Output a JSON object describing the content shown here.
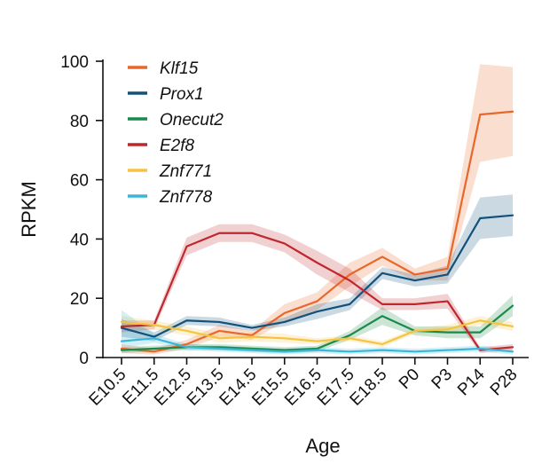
{
  "chart_data": {
    "type": "line",
    "title": "",
    "xlabel": "Age",
    "ylabel": "RPKM",
    "categories": [
      "E10.5",
      "E11.5",
      "E12.5",
      "E13.5",
      "E14.5",
      "E15.5",
      "E16.5",
      "E17.5",
      "E18.5",
      "P0",
      "P3",
      "P14",
      "P28"
    ],
    "ylim": [
      0,
      100
    ],
    "yticks": [
      0,
      20,
      40,
      60,
      80,
      100
    ],
    "grid": false,
    "legend_position": "top-left",
    "series": [
      {
        "name": "Klf15",
        "color": "#e8672a",
        "values": [
          3,
          2,
          4.5,
          9,
          7.5,
          15,
          19,
          28,
          34,
          28,
          30,
          82,
          83
        ],
        "lower": [
          1.5,
          1,
          3,
          7,
          6,
          12,
          16,
          24,
          31,
          26,
          26,
          66,
          68
        ],
        "upper": [
          4.5,
          3,
          6,
          11,
          9,
          18,
          22,
          32,
          37,
          30,
          34,
          99,
          98
        ]
      },
      {
        "name": "Prox1",
        "color": "#12527a",
        "values": [
          10,
          7,
          12.5,
          12,
          10,
          12,
          15.5,
          18,
          28.5,
          26,
          28,
          47,
          48
        ],
        "lower": [
          7,
          5.5,
          11,
          10.5,
          9,
          10.5,
          13,
          16,
          26.5,
          24,
          25,
          40,
          41
        ],
        "upper": [
          13,
          8.5,
          14,
          13.5,
          11,
          13.5,
          18,
          20,
          30.5,
          28,
          31,
          54,
          55
        ]
      },
      {
        "name": "Onecut2",
        "color": "#1a8a4a",
        "values": [
          2.5,
          3,
          3.5,
          3.5,
          3,
          2.5,
          3,
          7.5,
          14,
          9,
          8.5,
          8.5,
          17.5
        ],
        "lower": [
          1.5,
          2,
          2.5,
          2.5,
          2,
          1.5,
          2,
          6,
          11,
          7.5,
          6.5,
          6.5,
          14
        ],
        "upper": [
          3.5,
          4,
          4.5,
          4.5,
          4,
          3.5,
          4,
          9,
          17,
          10.5,
          10.5,
          10.5,
          21
        ]
      },
      {
        "name": "E2f8",
        "color": "#c0272d",
        "values": [
          10.5,
          11,
          37.5,
          42,
          42,
          38.5,
          32,
          26,
          18,
          18,
          19,
          2.5,
          3.5
        ],
        "lower": [
          8.5,
          9.5,
          34.5,
          39,
          39,
          35.5,
          28,
          22,
          16,
          16,
          16.5,
          1.5,
          2.5
        ],
        "upper": [
          12.5,
          12.5,
          40.5,
          45,
          45,
          41.5,
          36,
          30,
          20,
          20,
          21.5,
          3.5,
          4.5
        ]
      },
      {
        "name": "Znf771",
        "color": "#f5c342",
        "values": [
          12,
          11,
          9,
          6.5,
          7,
          6.5,
          5.5,
          6.5,
          4.5,
          9,
          9.5,
          12.5,
          10.5
        ],
        "lower": [
          10,
          9.5,
          7.5,
          5,
          5.5,
          5,
          4.5,
          5.5,
          3.5,
          8,
          8,
          11,
          9
        ],
        "upper": [
          14,
          12.5,
          10.5,
          8,
          8.5,
          8,
          6.5,
          7.5,
          5.5,
          10,
          11,
          14,
          12
        ]
      },
      {
        "name": "Znf778",
        "color": "#3ab7d8",
        "values": [
          5.5,
          6.5,
          3.5,
          3,
          2.5,
          2,
          2.5,
          2,
          2.5,
          2,
          2.5,
          3,
          2
        ],
        "lower": [
          3,
          5,
          2.5,
          2,
          1.5,
          1,
          1.5,
          1,
          1.5,
          1,
          1.5,
          2,
          1
        ],
        "upper": [
          16,
          8,
          4.5,
          4,
          3.5,
          3,
          3.5,
          3,
          3.5,
          3,
          3.5,
          4,
          3
        ]
      }
    ]
  }
}
